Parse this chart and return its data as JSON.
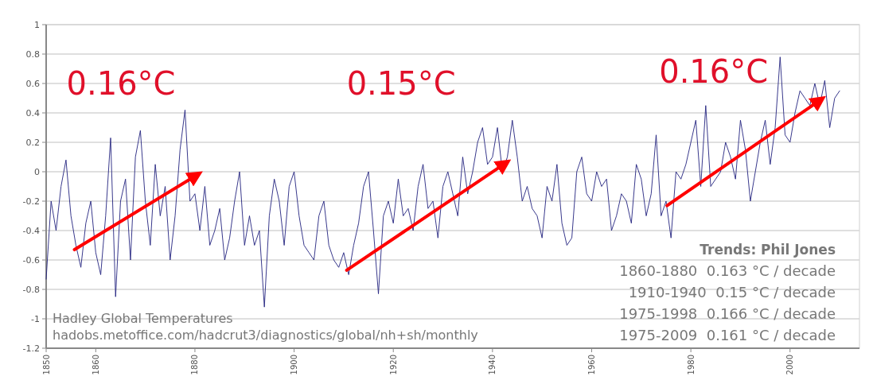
{
  "chart_data": {
    "type": "line",
    "xlim": [
      1850,
      2014
    ],
    "xticks": [
      1850,
      1860,
      1880,
      1900,
      1920,
      1940,
      1960,
      1980,
      2000
    ],
    "ylim": [
      -1.2,
      1
    ],
    "yticks": [
      -1.2,
      -1,
      -0.8,
      -0.6,
      -0.4,
      -0.2,
      0,
      0.2,
      0.4,
      0.6,
      0.8,
      1
    ],
    "grid": "y",
    "series": [
      {
        "color": "#23237f",
        "x": [
          1850,
          1851,
          1852,
          1853,
          1854,
          1855,
          1856,
          1857,
          1858,
          1859,
          1860,
          1861,
          1862,
          1863,
          1864,
          1865,
          1866,
          1867,
          1868,
          1869,
          1870,
          1871,
          1872,
          1873,
          1874,
          1875,
          1876,
          1877,
          1878,
          1879,
          1880,
          1881,
          1882,
          1883,
          1884,
          1885,
          1886,
          1887,
          1888,
          1889,
          1890,
          1891,
          1892,
          1893,
          1894,
          1895,
          1896,
          1897,
          1898,
          1899,
          1900,
          1901,
          1902,
          1903,
          1904,
          1905,
          1906,
          1907,
          1908,
          1909,
          1910,
          1911,
          1912,
          1913,
          1914,
          1915,
          1916,
          1917,
          1918,
          1919,
          1920,
          1921,
          1922,
          1923,
          1924,
          1925,
          1926,
          1927,
          1928,
          1929,
          1930,
          1931,
          1932,
          1933,
          1934,
          1935,
          1936,
          1937,
          1938,
          1939,
          1940,
          1941,
          1942,
          1943,
          1944,
          1945,
          1946,
          1947,
          1948,
          1949,
          1950,
          1951,
          1952,
          1953,
          1954,
          1955,
          1956,
          1957,
          1958,
          1959,
          1960,
          1961,
          1962,
          1963,
          1964,
          1965,
          1966,
          1967,
          1968,
          1969,
          1970,
          1971,
          1972,
          1973,
          1974,
          1975,
          1976,
          1977,
          1978,
          1979,
          1980,
          1981,
          1982,
          1983,
          1984,
          1985,
          1986,
          1987,
          1988,
          1989,
          1990,
          1991,
          1992,
          1993,
          1994,
          1995,
          1996,
          1997,
          1998,
          1999,
          2000,
          2001,
          2002,
          2003,
          2004,
          2005,
          2006,
          2007,
          2008,
          2009,
          2010
        ],
        "values": [
          -0.73,
          -0.2,
          -0.4,
          -0.1,
          0.08,
          -0.3,
          -0.5,
          -0.65,
          -0.35,
          -0.2,
          -0.55,
          -0.7,
          -0.3,
          0.23,
          -0.85,
          -0.2,
          -0.05,
          -0.6,
          0.1,
          0.28,
          -0.2,
          -0.5,
          0.05,
          -0.3,
          -0.1,
          -0.6,
          -0.3,
          0.15,
          0.42,
          -0.2,
          -0.15,
          -0.4,
          -0.1,
          -0.5,
          -0.4,
          -0.25,
          -0.6,
          -0.45,
          -0.2,
          0.0,
          -0.5,
          -0.3,
          -0.5,
          -0.4,
          -0.92,
          -0.3,
          -0.05,
          -0.2,
          -0.5,
          -0.1,
          0.0,
          -0.3,
          -0.5,
          -0.55,
          -0.6,
          -0.3,
          -0.2,
          -0.5,
          -0.6,
          -0.65,
          -0.55,
          -0.7,
          -0.5,
          -0.35,
          -0.1,
          0.0,
          -0.4,
          -0.83,
          -0.3,
          -0.2,
          -0.35,
          -0.05,
          -0.3,
          -0.25,
          -0.4,
          -0.1,
          0.05,
          -0.25,
          -0.2,
          -0.45,
          -0.1,
          0.0,
          -0.15,
          -0.3,
          0.1,
          -0.15,
          0.0,
          0.2,
          0.3,
          0.05,
          0.1,
          0.3,
          0.0,
          0.1,
          0.35,
          0.1,
          -0.2,
          -0.1,
          -0.25,
          -0.3,
          -0.45,
          -0.1,
          -0.2,
          0.05,
          -0.35,
          -0.5,
          -0.45,
          0.0,
          0.1,
          -0.15,
          -0.2,
          0.0,
          -0.1,
          -0.05,
          -0.4,
          -0.3,
          -0.15,
          -0.2,
          -0.35,
          0.05,
          -0.05,
          -0.3,
          -0.15,
          0.25,
          -0.3,
          -0.2,
          -0.45,
          0.0,
          -0.05,
          0.05,
          0.2,
          0.35,
          -0.1,
          0.45,
          -0.1,
          -0.05,
          0.0,
          0.2,
          0.1,
          -0.05,
          0.35,
          0.15,
          -0.2,
          0.0,
          0.2,
          0.35,
          0.05,
          0.3,
          0.78,
          0.25,
          0.2,
          0.4,
          0.55,
          0.5,
          0.45,
          0.6,
          0.45,
          0.62,
          0.3,
          0.5,
          0.55
        ]
      },
      {
        "type": "line",
        "color": "#ff0000",
        "x": [
          1855.7,
          1880.5
        ],
        "values": [
          -0.53,
          -0.02
        ]
      },
      {
        "type": "line",
        "color": "#ff0000",
        "x": [
          1910.6,
          1942.7
        ],
        "values": [
          -0.67,
          0.06
        ]
      },
      {
        "type": "line",
        "color": "#ff0000",
        "x": [
          1975.2,
          2006.2
        ],
        "values": [
          -0.23,
          0.49
        ]
      }
    ],
    "annotations": [
      "0.16°C",
      "0.15°C",
      "0.16°C",
      "Hadley Global Temperatures",
      "hadobs.metoffice.com/hadcrut3/diagnostics/global/nh+sh/monthly",
      "Trends: Phil Jones",
      "1860-1880  0.163 °C / decade",
      "1910-1940  0.15 °C / decade",
      "1975-1998  0.166 °C / decade",
      "1975-2009  0.161 °C / decade"
    ]
  }
}
